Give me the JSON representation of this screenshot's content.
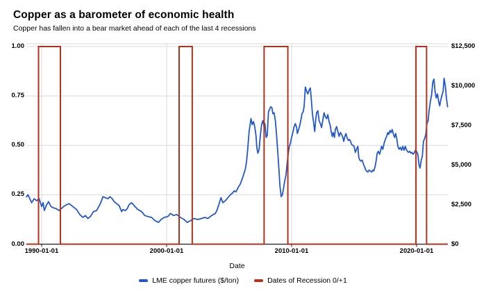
{
  "header": {
    "title": "Copper as a barometer of economic health",
    "subtitle": "Copper has fallen into a bear market ahead of each of the last 4 recessions"
  },
  "chart_data": {
    "type": "line",
    "title": "Copper as a barometer of economic health",
    "subtitle": "Copper has fallen into a bear market ahead of each of the last 4 recessions",
    "xlabel": "Date",
    "x_range": [
      1988.78,
      2022.5
    ],
    "x_ticks": [
      {
        "label": "1990-01-01",
        "year": 1990
      },
      {
        "label": "2000-01-01",
        "year": 2000
      },
      {
        "label": "2010-01-01",
        "year": 2010
      },
      {
        "label": "2020-01-01",
        "year": 2020
      }
    ],
    "left_axis": {
      "range": [
        0,
        1
      ],
      "ticks": [
        {
          "label": "1.00",
          "value": 1.0
        },
        {
          "label": "0.75",
          "value": 0.75
        },
        {
          "label": "0.50",
          "value": 0.5
        },
        {
          "label": "0.25",
          "value": 0.25
        },
        {
          "label": "0.00",
          "value": 0.0
        }
      ]
    },
    "right_axis": {
      "range": [
        0,
        12500
      ],
      "ticks": [
        {
          "label": "$12,500",
          "value": 12500
        },
        {
          "label": "$10,000",
          "value": 10000
        },
        {
          "label": "$7,500",
          "value": 7500
        },
        {
          "label": "$5,000",
          "value": 5000
        },
        {
          "label": "$2,500",
          "value": 2500
        },
        {
          "label": "$0",
          "value": 0
        }
      ]
    },
    "grid": true,
    "colors": {
      "copper": "#2257cb",
      "recession": "#b5311c",
      "grid": "#d9d9d9",
      "axis": "#1a1a1a",
      "text": "#000000"
    },
    "legend": {
      "position": "bottom",
      "items": [
        {
          "label": "LME copper futures ($/ton)",
          "color": "#2257cb"
        },
        {
          "label": "Dates of Recession 0/+1",
          "color": "#b5311c"
        }
      ]
    },
    "series": [
      {
        "name": "LME copper futures ($/ton)",
        "axis": "right",
        "color": "#2257cb",
        "points": [
          [
            1988.78,
            3000
          ],
          [
            1988.9,
            3125
          ],
          [
            1989.2,
            2625
          ],
          [
            1989.4,
            2875
          ],
          [
            1989.6,
            2750
          ],
          [
            1989.8,
            2875
          ],
          [
            1990.0,
            2375
          ],
          [
            1990.12,
            2625
          ],
          [
            1990.22,
            2125
          ],
          [
            1990.4,
            2500
          ],
          [
            1990.55,
            2690
          ],
          [
            1990.75,
            2375
          ],
          [
            1990.9,
            2310
          ],
          [
            1991.15,
            2250
          ],
          [
            1991.4,
            2125
          ],
          [
            1991.75,
            2375
          ],
          [
            1992.0,
            2500
          ],
          [
            1992.2,
            2560
          ],
          [
            1992.5,
            2375
          ],
          [
            1992.8,
            2190
          ],
          [
            1993.05,
            1875
          ],
          [
            1993.3,
            1690
          ],
          [
            1993.5,
            1810
          ],
          [
            1993.7,
            1625
          ],
          [
            1993.9,
            1750
          ],
          [
            1994.15,
            2060
          ],
          [
            1994.4,
            2125
          ],
          [
            1994.7,
            2560
          ],
          [
            1994.9,
            3000
          ],
          [
            1995.1,
            2940
          ],
          [
            1995.3,
            2875
          ],
          [
            1995.45,
            3000
          ],
          [
            1995.65,
            2875
          ],
          [
            1995.8,
            2690
          ],
          [
            1996.0,
            2560
          ],
          [
            1996.2,
            2440
          ],
          [
            1996.4,
            2060
          ],
          [
            1996.5,
            2190
          ],
          [
            1996.7,
            2125
          ],
          [
            1996.85,
            2250
          ],
          [
            1997.0,
            2500
          ],
          [
            1997.2,
            2625
          ],
          [
            1997.4,
            2440
          ],
          [
            1997.7,
            2190
          ],
          [
            1998.0,
            2060
          ],
          [
            1998.25,
            1810
          ],
          [
            1998.5,
            1750
          ],
          [
            1998.8,
            1690
          ],
          [
            1999.05,
            1500
          ],
          [
            1999.35,
            1375
          ],
          [
            1999.55,
            1560
          ],
          [
            1999.8,
            1690
          ],
          [
            2000.1,
            1750
          ],
          [
            2000.3,
            1940
          ],
          [
            2000.55,
            1810
          ],
          [
            2000.8,
            1875
          ],
          [
            2001.1,
            1690
          ],
          [
            2001.4,
            1560
          ],
          [
            2001.65,
            1375
          ],
          [
            2001.95,
            1500
          ],
          [
            2002.2,
            1625
          ],
          [
            2002.5,
            1560
          ],
          [
            2002.8,
            1625
          ],
          [
            2003.05,
            1690
          ],
          [
            2003.3,
            1625
          ],
          [
            2003.6,
            1810
          ],
          [
            2003.9,
            1940
          ],
          [
            2004.05,
            2190
          ],
          [
            2004.25,
            2690
          ],
          [
            2004.35,
            2940
          ],
          [
            2004.5,
            2625
          ],
          [
            2004.7,
            2750
          ],
          [
            2004.9,
            2940
          ],
          [
            2005.1,
            3125
          ],
          [
            2005.3,
            3250
          ],
          [
            2005.4,
            3375
          ],
          [
            2005.55,
            3310
          ],
          [
            2005.75,
            3625
          ],
          [
            2005.9,
            3810
          ],
          [
            2006.1,
            4250
          ],
          [
            2006.3,
            4750
          ],
          [
            2006.4,
            5250
          ],
          [
            2006.5,
            6125
          ],
          [
            2006.6,
            7125
          ],
          [
            2006.75,
            7940
          ],
          [
            2006.85,
            7560
          ],
          [
            2006.95,
            7750
          ],
          [
            2007.05,
            7440
          ],
          [
            2007.15,
            6875
          ],
          [
            2007.22,
            6125
          ],
          [
            2007.3,
            5750
          ],
          [
            2007.4,
            6000
          ],
          [
            2007.5,
            6875
          ],
          [
            2007.6,
            7560
          ],
          [
            2007.7,
            7810
          ],
          [
            2007.8,
            7440
          ],
          [
            2007.87,
            7625
          ],
          [
            2007.96,
            6750
          ],
          [
            2008.05,
            6875
          ],
          [
            2008.15,
            8375
          ],
          [
            2008.25,
            8560
          ],
          [
            2008.33,
            8690
          ],
          [
            2008.43,
            8625
          ],
          [
            2008.5,
            8250
          ],
          [
            2008.6,
            8310
          ],
          [
            2008.7,
            7810
          ],
          [
            2008.8,
            6875
          ],
          [
            2008.9,
            5750
          ],
          [
            2009.0,
            4560
          ],
          [
            2009.07,
            3690
          ],
          [
            2009.17,
            3000
          ],
          [
            2009.26,
            3125
          ],
          [
            2009.35,
            3500
          ],
          [
            2009.45,
            4000
          ],
          [
            2009.55,
            4375
          ],
          [
            2009.63,
            5000
          ],
          [
            2009.72,
            5625
          ],
          [
            2009.8,
            6125
          ],
          [
            2009.9,
            6375
          ],
          [
            2010.0,
            6750
          ],
          [
            2010.1,
            7060
          ],
          [
            2010.2,
            7440
          ],
          [
            2010.3,
            7625
          ],
          [
            2010.4,
            7375
          ],
          [
            2010.46,
            7000
          ],
          [
            2010.56,
            7250
          ],
          [
            2010.65,
            7500
          ],
          [
            2010.75,
            7875
          ],
          [
            2010.83,
            8250
          ],
          [
            2010.93,
            8375
          ],
          [
            2011.0,
            8690
          ],
          [
            2011.1,
            9940
          ],
          [
            2011.2,
            9690
          ],
          [
            2011.3,
            9500
          ],
          [
            2011.4,
            9750
          ],
          [
            2011.5,
            9875
          ],
          [
            2011.57,
            9250
          ],
          [
            2011.67,
            8250
          ],
          [
            2011.76,
            7690
          ],
          [
            2011.85,
            7125
          ],
          [
            2011.94,
            7940
          ],
          [
            2012.0,
            8310
          ],
          [
            2012.1,
            8440
          ],
          [
            2012.2,
            7810
          ],
          [
            2012.3,
            7625
          ],
          [
            2012.4,
            7375
          ],
          [
            2012.5,
            7875
          ],
          [
            2012.6,
            8310
          ],
          [
            2012.7,
            8060
          ],
          [
            2012.8,
            7940
          ],
          [
            2012.9,
            8190
          ],
          [
            2013.0,
            7750
          ],
          [
            2013.1,
            7500
          ],
          [
            2013.15,
            7190
          ],
          [
            2013.25,
            6810
          ],
          [
            2013.33,
            7060
          ],
          [
            2013.43,
            6750
          ],
          [
            2013.5,
            7250
          ],
          [
            2013.6,
            7440
          ],
          [
            2013.7,
            7125
          ],
          [
            2013.8,
            6810
          ],
          [
            2013.9,
            7060
          ],
          [
            2014.0,
            6940
          ],
          [
            2014.1,
            6750
          ],
          [
            2014.17,
            6500
          ],
          [
            2014.26,
            6810
          ],
          [
            2014.35,
            7000
          ],
          [
            2014.45,
            6690
          ],
          [
            2014.55,
            6560
          ],
          [
            2014.63,
            6625
          ],
          [
            2014.72,
            6500
          ],
          [
            2014.8,
            6310
          ],
          [
            2015.0,
            6190
          ],
          [
            2015.1,
            5810
          ],
          [
            2015.2,
            6000
          ],
          [
            2015.3,
            6190
          ],
          [
            2015.37,
            5500
          ],
          [
            2015.46,
            5310
          ],
          [
            2015.55,
            5250
          ],
          [
            2015.65,
            5310
          ],
          [
            2015.75,
            5060
          ],
          [
            2015.85,
            4875
          ],
          [
            2015.93,
            4690
          ],
          [
            2016.0,
            4625
          ],
          [
            2016.1,
            4560
          ],
          [
            2016.2,
            4690
          ],
          [
            2016.3,
            4625
          ],
          [
            2016.4,
            4560
          ],
          [
            2016.5,
            4690
          ],
          [
            2016.57,
            4625
          ],
          [
            2016.67,
            4875
          ],
          [
            2016.76,
            5250
          ],
          [
            2016.85,
            5750
          ],
          [
            2016.94,
            5875
          ],
          [
            2017.04,
            5690
          ],
          [
            2017.13,
            5940
          ],
          [
            2017.2,
            6190
          ],
          [
            2017.3,
            6000
          ],
          [
            2017.4,
            6375
          ],
          [
            2017.5,
            6625
          ],
          [
            2017.6,
            6810
          ],
          [
            2017.7,
            7060
          ],
          [
            2017.78,
            6940
          ],
          [
            2017.87,
            7190
          ],
          [
            2017.96,
            7060
          ],
          [
            2018.05,
            7250
          ],
          [
            2018.15,
            6940
          ],
          [
            2018.24,
            6750
          ],
          [
            2018.33,
            7000
          ],
          [
            2018.43,
            6625
          ],
          [
            2018.5,
            6190
          ],
          [
            2018.6,
            6000
          ],
          [
            2018.7,
            6125
          ],
          [
            2018.8,
            5940
          ],
          [
            2018.9,
            6190
          ],
          [
            2019.0,
            5940
          ],
          [
            2019.1,
            6190
          ],
          [
            2019.17,
            6000
          ],
          [
            2019.26,
            5875
          ],
          [
            2019.35,
            5810
          ],
          [
            2019.45,
            5875
          ],
          [
            2019.55,
            5750
          ],
          [
            2019.63,
            5810
          ],
          [
            2019.72,
            5690
          ],
          [
            2019.8,
            5750
          ],
          [
            2019.9,
            5940
          ],
          [
            2020.0,
            5875
          ],
          [
            2020.1,
            5690
          ],
          [
            2020.2,
            5000
          ],
          [
            2020.28,
            4810
          ],
          [
            2020.37,
            5310
          ],
          [
            2020.46,
            5560
          ],
          [
            2020.55,
            6500
          ],
          [
            2020.65,
            6690
          ],
          [
            2020.74,
            6940
          ],
          [
            2020.83,
            7625
          ],
          [
            2020.93,
            7810
          ],
          [
            2021.0,
            8440
          ],
          [
            2021.1,
            9000
          ],
          [
            2021.2,
            9440
          ],
          [
            2021.3,
            10250
          ],
          [
            2021.39,
            10440
          ],
          [
            2021.48,
            9690
          ],
          [
            2021.57,
            9250
          ],
          [
            2021.67,
            9500
          ],
          [
            2021.76,
            9060
          ],
          [
            2021.85,
            8750
          ],
          [
            2021.94,
            9125
          ],
          [
            2022.04,
            9440
          ],
          [
            2022.13,
            9690
          ],
          [
            2022.2,
            10500
          ],
          [
            2022.3,
            10000
          ],
          [
            2022.39,
            9250
          ],
          [
            2022.48,
            8690
          ]
        ]
      },
      {
        "name": "Dates of Recession 0/+1",
        "axis": "left",
        "color": "#b5311c",
        "type": "step-indicator",
        "baseline": 0,
        "band_value": 1,
        "bands": [
          [
            1989.75,
            1991.5
          ],
          [
            2001.0,
            2002.05
          ],
          [
            2007.8,
            2009.7
          ],
          [
            2019.95,
            2020.8
          ]
        ]
      }
    ]
  }
}
